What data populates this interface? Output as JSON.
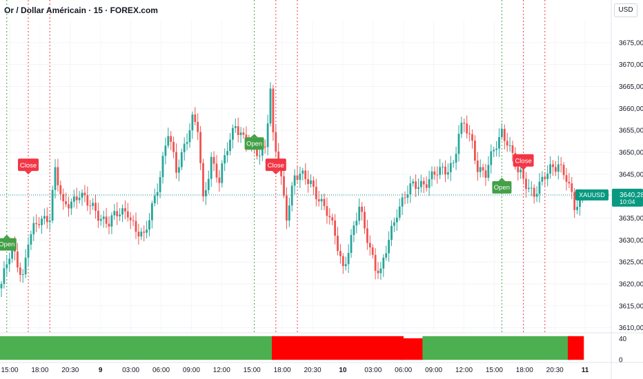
{
  "header": {
    "title": "Or / Dollar Américain · 15 · FOREX.com",
    "currency": "USD"
  },
  "price_label": {
    "symbol": "XAUUSD",
    "price": "3640,28",
    "countdown": "10:04"
  },
  "colors": {
    "up": "#26a69a",
    "down": "#ef5350",
    "open_marker": "#43a047",
    "close_marker": "#f23645",
    "open_line": "#43a047",
    "close_line": "#f23645",
    "ind_green": "#4caf50",
    "ind_red": "#ff0000",
    "price_tag": "#089981"
  },
  "chart_data": {
    "type": "candlestick",
    "title": "Or / Dollar Américain · 15 · FOREX.com",
    "symbol": "XAUUSD",
    "price_axis": {
      "range": [
        3609,
        3680
      ],
      "ticks": [
        "3675,00",
        "3670,00",
        "3665,00",
        "3660,00",
        "3655,00",
        "3650,00",
        "3645,00",
        "3640,00",
        "3635,00",
        "3630,00",
        "3625,00",
        "3620,00",
        "3615,00",
        "3610,00"
      ],
      "tick_values": [
        3675,
        3670,
        3665,
        3660,
        3655,
        3650,
        3645,
        3640,
        3635,
        3630,
        3625,
        3620,
        3615,
        3610
      ]
    },
    "time_axis": {
      "labels": [
        "15:00",
        "18:00",
        "20:30",
        "9",
        "03:00",
        "06:00",
        "09:00",
        "12:00",
        "15:00",
        "18:00",
        "20:30",
        "10",
        "03:00",
        "06:00",
        "09:00",
        "12:00",
        "15:00",
        "18:00",
        "20:30",
        "11"
      ],
      "bold": [
        "9",
        "10",
        "11"
      ]
    },
    "last_price": 3640.28,
    "close_path": [
      [
        0,
        3620
      ],
      [
        4,
        3628
      ],
      [
        8,
        3622
      ],
      [
        10,
        3630
      ],
      [
        14,
        3634
      ],
      [
        18,
        3636
      ],
      [
        20,
        3646
      ],
      [
        23,
        3637
      ],
      [
        26,
        3639
      ],
      [
        29,
        3641
      ],
      [
        32,
        3638
      ],
      [
        36,
        3636
      ],
      [
        40,
        3634
      ],
      [
        44,
        3636
      ],
      [
        47,
        3637
      ],
      [
        50,
        3632
      ],
      [
        53,
        3630
      ],
      [
        56,
        3638
      ],
      [
        59,
        3645
      ],
      [
        62,
        3654
      ],
      [
        65,
        3646
      ],
      [
        68,
        3652
      ],
      [
        71,
        3657
      ],
      [
        73,
        3655
      ],
      [
        75,
        3639
      ],
      [
        78,
        3649
      ],
      [
        81,
        3643
      ],
      [
        84,
        3651
      ],
      [
        87,
        3657
      ],
      [
        90,
        3653
      ],
      [
        93,
        3651
      ],
      [
        96,
        3650
      ],
      [
        98,
        3652
      ],
      [
        100,
        3664
      ],
      [
        101,
        3653
      ],
      [
        103,
        3647
      ],
      [
        106,
        3636
      ],
      [
        109,
        3645
      ],
      [
        112,
        3644
      ],
      [
        115,
        3643
      ],
      [
        118,
        3640
      ],
      [
        121,
        3636
      ],
      [
        124,
        3631
      ],
      [
        127,
        3624
      ],
      [
        130,
        3630
      ],
      [
        133,
        3637
      ],
      [
        136,
        3631
      ],
      [
        139,
        3624
      ],
      [
        141,
        3622
      ],
      [
        144,
        3630
      ],
      [
        147,
        3637
      ],
      [
        150,
        3640
      ],
      [
        153,
        3642
      ],
      [
        156,
        3643
      ],
      [
        159,
        3644
      ],
      [
        162,
        3645
      ],
      [
        165,
        3646
      ],
      [
        168,
        3648
      ],
      [
        170,
        3654
      ],
      [
        172,
        3656
      ],
      [
        175,
        3652
      ],
      [
        177,
        3647
      ],
      [
        180,
        3645
      ],
      [
        183,
        3650
      ],
      [
        186,
        3655
      ],
      [
        188,
        3653
      ],
      [
        190,
        3649
      ],
      [
        192,
        3645
      ],
      [
        195,
        3643
      ],
      [
        198,
        3641
      ],
      [
        201,
        3643
      ],
      [
        204,
        3646
      ],
      [
        207,
        3648
      ],
      [
        210,
        3644
      ],
      [
        213,
        3637
      ],
      [
        216,
        3640
      ]
    ],
    "markers": [
      {
        "label": "Open",
        "type": "open",
        "bar": 2,
        "price": 3629
      },
      {
        "label": "Close",
        "type": "close",
        "bar": 10,
        "price": 3647
      },
      {
        "label": "Open",
        "type": "open",
        "bar": 94,
        "price": 3652
      },
      {
        "label": "Close",
        "type": "close",
        "bar": 102,
        "price": 3647
      },
      {
        "label": "Open",
        "type": "open",
        "bar": 186,
        "price": 3642
      },
      {
        "label": "Close",
        "type": "close",
        "bar": 194,
        "price": 3648
      }
    ],
    "vlines": [
      {
        "bar": 2,
        "type": "open"
      },
      {
        "bar": 10,
        "type": "close"
      },
      {
        "bar": 18,
        "type": "close"
      },
      {
        "bar": 94,
        "type": "open"
      },
      {
        "bar": 102,
        "type": "close"
      },
      {
        "bar": 110,
        "type": "close"
      },
      {
        "bar": 186,
        "type": "open"
      },
      {
        "bar": 194,
        "type": "close"
      },
      {
        "bar": 202,
        "type": "close"
      }
    ]
  },
  "indicator": {
    "ticks": [
      "40",
      "0"
    ],
    "tick_values": [
      40,
      0
    ],
    "range": [
      -5,
      50
    ],
    "segments": [
      {
        "from_bar": 0,
        "to_bar": 101,
        "color": "green",
        "value": 45
      },
      {
        "from_bar": 101,
        "to_bar": 149,
        "color": "red",
        "value": 45
      },
      {
        "from_bar": 149,
        "to_bar": 157,
        "color": "red",
        "value": 41
      },
      {
        "from_bar": 157,
        "to_bar": 211,
        "color": "green",
        "value": 45
      },
      {
        "from_bar": 211,
        "to_bar": 216,
        "color": "red",
        "value": 45
      }
    ]
  }
}
